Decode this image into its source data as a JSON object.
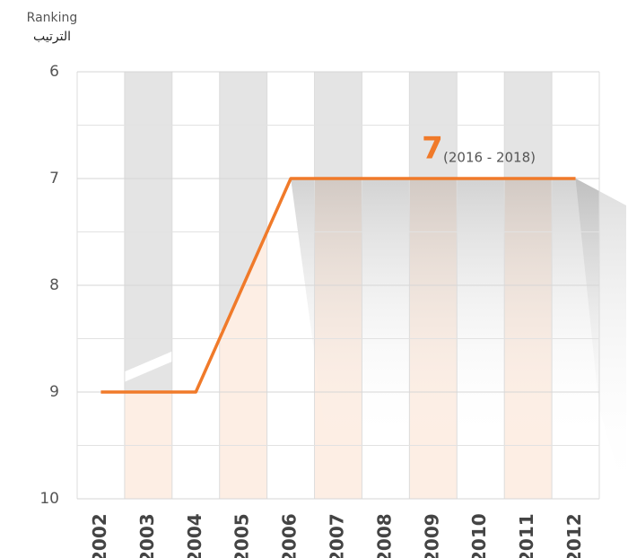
{
  "chart_data": {
    "type": "line",
    "y_label": "Ranking",
    "y_label_ar": "الترتيب",
    "categories": [
      "2002",
      "2003",
      "2004",
      "2005",
      "2006",
      "2007",
      "2008",
      "2009",
      "2010",
      "2011",
      "2012"
    ],
    "series": [
      {
        "color": "#f07a2a",
        "values": [
          9,
          9,
          9,
          8,
          7,
          7,
          7,
          7,
          7,
          7,
          7
        ]
      }
    ],
    "ylim": [
      6,
      10
    ],
    "y_inverted": true,
    "yticks": [
      6,
      7,
      8,
      9,
      10
    ],
    "grid": true,
    "annotation": {
      "value": 7,
      "label": "(2016 - 2018)"
    }
  }
}
